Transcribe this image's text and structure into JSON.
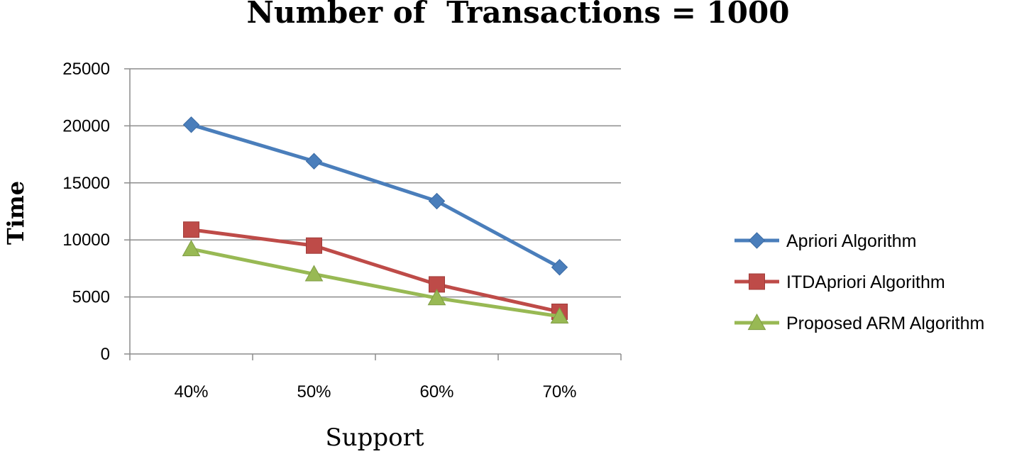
{
  "chart_data": {
    "type": "line",
    "title": "Number of  Transactions = 1000",
    "xlabel": "Support",
    "ylabel": "Time",
    "categories": [
      "40%",
      "50%",
      "60%",
      "70%"
    ],
    "ylim": [
      0,
      25000
    ],
    "yticks": [
      0,
      5000,
      10000,
      15000,
      20000,
      25000
    ],
    "grid": true,
    "legend_position": "right",
    "series": [
      {
        "name": "Apriori Algorithm",
        "values": [
          20100,
          16900,
          13400,
          7600
        ],
        "color": "#4a7ebb",
        "marker": "diamond"
      },
      {
        "name": "ITDApriori Algorithm",
        "values": [
          10900,
          9500,
          6100,
          3700
        ],
        "color": "#be4b48",
        "marker": "square"
      },
      {
        "name": "Proposed ARM Algorithm",
        "values": [
          9200,
          7000,
          4900,
          3300
        ],
        "color": "#98b954",
        "marker": "triangle"
      }
    ]
  }
}
